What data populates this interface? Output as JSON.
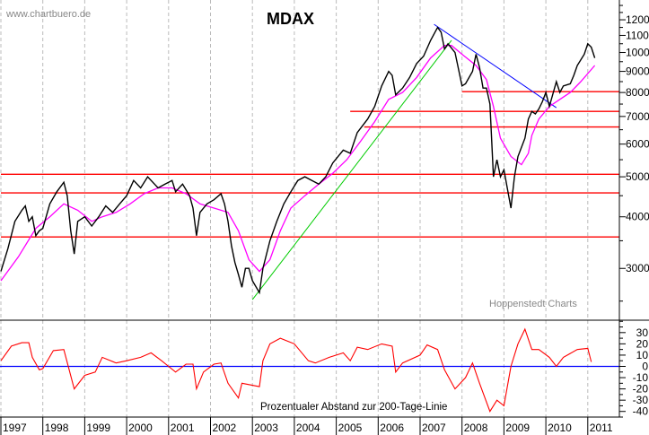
{
  "chart_data": [
    {
      "type": "line",
      "title": "MDAX",
      "watermark": "www.chartbuero.de",
      "source": "Hoppenstedt Charts",
      "y_scale": "log",
      "ylim": [
        2270,
        13400
      ],
      "xlim": [
        "1997-01",
        "2011-10"
      ],
      "y_ticks": [
        3000,
        4000,
        5000,
        6000,
        7000,
        8000,
        9000,
        10000,
        11000,
        12000
      ],
      "y_axis_side": "right",
      "grid": "vertical dashed at year starts",
      "colors": {
        "price": "#000000",
        "ma200": "#ff00ff",
        "support": "#ff0000",
        "downtrend": "#0000ff",
        "uptrend": "#00cc00"
      },
      "series": [
        {
          "key": "price",
          "points": [
            [
              "1997-01",
              2950
            ],
            [
              "1997-03",
              3350
            ],
            [
              "1997-05",
              3900
            ],
            [
              "1997-07",
              4150
            ],
            [
              "1997-08",
              4250
            ],
            [
              "1997-09",
              3900
            ],
            [
              "1997-10",
              4000
            ],
            [
              "1997-11",
              3600
            ],
            [
              "1997-12",
              3700
            ],
            [
              "1998-01",
              3750
            ],
            [
              "1998-03",
              4300
            ],
            [
              "1998-05",
              4600
            ],
            [
              "1998-07",
              4850
            ],
            [
              "1998-08",
              4500
            ],
            [
              "1998-09",
              3700
            ],
            [
              "1998-10",
              3250
            ],
            [
              "1998-11",
              3900
            ],
            [
              "1999-01",
              4000
            ],
            [
              "1999-03",
              3800
            ],
            [
              "1999-05",
              4000
            ],
            [
              "1999-07",
              4250
            ],
            [
              "1999-09",
              4100
            ],
            [
              "1999-11",
              4300
            ],
            [
              "2000-01",
              4500
            ],
            [
              "2000-03",
              4900
            ],
            [
              "2000-05",
              4700
            ],
            [
              "2000-07",
              5000
            ],
            [
              "2000-09",
              4800
            ],
            [
              "2000-10",
              4700
            ],
            [
              "2000-12",
              4800
            ],
            [
              "2001-02",
              4900
            ],
            [
              "2001-03",
              4600
            ],
            [
              "2001-05",
              4800
            ],
            [
              "2001-07",
              4500
            ],
            [
              "2001-08",
              4200
            ],
            [
              "2001-09",
              3600
            ],
            [
              "2001-10",
              4100
            ],
            [
              "2001-12",
              4300
            ],
            [
              "2002-02",
              4400
            ],
            [
              "2002-04",
              4550
            ],
            [
              "2002-05",
              4300
            ],
            [
              "2002-06",
              3900
            ],
            [
              "2002-07",
              3400
            ],
            [
              "2002-08",
              3100
            ],
            [
              "2002-09",
              2900
            ],
            [
              "2002-10",
              2700
            ],
            [
              "2002-11",
              3000
            ],
            [
              "2002-12",
              3000
            ],
            [
              "2003-01",
              2800
            ],
            [
              "2003-03",
              2620
            ],
            [
              "2003-04",
              3000
            ],
            [
              "2003-06",
              3500
            ],
            [
              "2003-08",
              3900
            ],
            [
              "2003-10",
              4300
            ],
            [
              "2003-12",
              4600
            ],
            [
              "2004-02",
              4900
            ],
            [
              "2004-04",
              5000
            ],
            [
              "2004-06",
              4900
            ],
            [
              "2004-08",
              4800
            ],
            [
              "2004-10",
              5000
            ],
            [
              "2004-12",
              5400
            ],
            [
              "2005-03",
              5800
            ],
            [
              "2005-05",
              5700
            ],
            [
              "2005-07",
              6400
            ],
            [
              "2005-10",
              6900
            ],
            [
              "2005-12",
              7400
            ],
            [
              "2006-02",
              8300
            ],
            [
              "2006-04",
              9000
            ],
            [
              "2006-05",
              8800
            ],
            [
              "2006-06",
              7900
            ],
            [
              "2006-08",
              8200
            ],
            [
              "2006-10",
              8700
            ],
            [
              "2006-12",
              9400
            ],
            [
              "2007-02",
              9800
            ],
            [
              "2007-04",
              10700
            ],
            [
              "2007-06",
              11500
            ],
            [
              "2007-07",
              11200
            ],
            [
              "2007-08",
              10200
            ],
            [
              "2007-09",
              10500
            ],
            [
              "2007-11",
              10000
            ],
            [
              "2008-01",
              8300
            ],
            [
              "2008-02",
              8400
            ],
            [
              "2008-04",
              9000
            ],
            [
              "2008-05",
              9900
            ],
            [
              "2008-06",
              9200
            ],
            [
              "2008-07",
              8200
            ],
            [
              "2008-08",
              8200
            ],
            [
              "2008-09",
              7500
            ],
            [
              "2008-10",
              5000
            ],
            [
              "2008-11",
              5500
            ],
            [
              "2008-12",
              5000
            ],
            [
              "2009-01",
              5200
            ],
            [
              "2009-03",
              4200
            ],
            [
              "2009-04",
              5000
            ],
            [
              "2009-05",
              5600
            ],
            [
              "2009-07",
              6200
            ],
            [
              "2009-08",
              6900
            ],
            [
              "2009-09",
              7200
            ],
            [
              "2009-10",
              7100
            ],
            [
              "2009-11",
              7300
            ],
            [
              "2009-12",
              7600
            ],
            [
              "2010-01",
              8000
            ],
            [
              "2010-02",
              7400
            ],
            [
              "2010-04",
              8500
            ],
            [
              "2010-05",
              8000
            ],
            [
              "2010-06",
              8300
            ],
            [
              "2010-08",
              8400
            ],
            [
              "2010-09",
              8800
            ],
            [
              "2010-10",
              9300
            ],
            [
              "2010-12",
              9900
            ],
            [
              "2011-01",
              10500
            ],
            [
              "2011-02",
              10300
            ],
            [
              "2011-03",
              9700
            ]
          ]
        },
        {
          "key": "ma200",
          "points": [
            [
              "1997-01",
              2800
            ],
            [
              "1997-06",
              3200
            ],
            [
              "1997-11",
              3750
            ],
            [
              "1998-03",
              4000
            ],
            [
              "1998-07",
              4300
            ],
            [
              "1998-11",
              4150
            ],
            [
              "1999-03",
              3900
            ],
            [
              "1999-06",
              4000
            ],
            [
              "1999-10",
              4100
            ],
            [
              "2000-02",
              4300
            ],
            [
              "2000-06",
              4550
            ],
            [
              "2000-10",
              4700
            ],
            [
              "2001-02",
              4700
            ],
            [
              "2001-06",
              4550
            ],
            [
              "2001-10",
              4300
            ],
            [
              "2002-02",
              4200
            ],
            [
              "2002-06",
              4100
            ],
            [
              "2002-09",
              3700
            ],
            [
              "2002-12",
              3150
            ],
            [
              "2003-03",
              2950
            ],
            [
              "2003-06",
              3150
            ],
            [
              "2003-09",
              3700
            ],
            [
              "2003-12",
              4200
            ],
            [
              "2004-04",
              4500
            ],
            [
              "2004-08",
              4800
            ],
            [
              "2004-12",
              5100
            ],
            [
              "2005-04",
              5500
            ],
            [
              "2005-08",
              6100
            ],
            [
              "2005-12",
              6800
            ],
            [
              "2006-04",
              7700
            ],
            [
              "2006-08",
              8000
            ],
            [
              "2006-12",
              8700
            ],
            [
              "2007-04",
              9700
            ],
            [
              "2007-08",
              10400
            ],
            [
              "2007-10",
              10400
            ],
            [
              "2008-01",
              9900
            ],
            [
              "2008-05",
              9300
            ],
            [
              "2008-08",
              8600
            ],
            [
              "2008-10",
              7400
            ],
            [
              "2008-12",
              6200
            ],
            [
              "2009-03",
              5600
            ],
            [
              "2009-06",
              5350
            ],
            [
              "2009-08",
              5700
            ],
            [
              "2009-09",
              6300
            ],
            [
              "2009-11",
              6900
            ],
            [
              "2010-02",
              7400
            ],
            [
              "2010-05",
              7700
            ],
            [
              "2010-08",
              8000
            ],
            [
              "2010-11",
              8500
            ],
            [
              "2011-03",
              9300
            ]
          ]
        }
      ],
      "horizontal_lines": [
        {
          "value": 8040,
          "from": "2008-01"
        },
        {
          "value": 7200,
          "from": "2005-05"
        },
        {
          "value": 6600,
          "from": "2005-09"
        },
        {
          "value": 5070,
          "from": "1997-01"
        },
        {
          "value": 4570,
          "from": "1997-01"
        },
        {
          "value": 3575,
          "from": "1997-01"
        }
      ],
      "trend_lines": [
        {
          "key": "downtrend",
          "from": [
            "2007-05",
            11700
          ],
          "to": [
            "2010-04",
            7350
          ]
        },
        {
          "key": "uptrend",
          "from": [
            "2003-01",
            2520
          ],
          "to": [
            "2007-10",
            10700
          ]
        }
      ]
    },
    {
      "type": "line",
      "annotation": "Prozentualer Abstand zur 200-Tage-Linie",
      "ylim": [
        -45,
        41
      ],
      "y_ticks": [
        30,
        20,
        10,
        0,
        -10,
        -20,
        -30,
        -40
      ],
      "zero_line_color": "#0000ff",
      "series_color": "#ff0000",
      "x_tick_labels": [
        "1997",
        "1998",
        "1999",
        "2000",
        "2001",
        "2002",
        "2003",
        "2004",
        "2005",
        "2006",
        "2007",
        "2008",
        "2009",
        "2010",
        "2011"
      ],
      "points": [
        [
          "1997-01",
          5
        ],
        [
          "1997-04",
          18
        ],
        [
          "1997-07",
          21
        ],
        [
          "1997-09",
          21
        ],
        [
          "1997-10",
          8
        ],
        [
          "1997-12",
          -3
        ],
        [
          "1998-01",
          -2
        ],
        [
          "1998-04",
          14
        ],
        [
          "1998-07",
          15
        ],
        [
          "1998-10",
          -20
        ],
        [
          "1999-01",
          -8
        ],
        [
          "1999-04",
          -5
        ],
        [
          "1999-06",
          8
        ],
        [
          "1999-10",
          3
        ],
        [
          "2000-01",
          5
        ],
        [
          "2000-05",
          8
        ],
        [
          "2000-08",
          12
        ],
        [
          "2000-11",
          5
        ],
        [
          "2001-01",
          0
        ],
        [
          "2001-03",
          -5
        ],
        [
          "2001-06",
          2
        ],
        [
          "2001-08",
          2
        ],
        [
          "2001-09",
          -20
        ],
        [
          "2001-11",
          -5
        ],
        [
          "2002-02",
          2
        ],
        [
          "2002-04",
          3
        ],
        [
          "2002-06",
          -15
        ],
        [
          "2002-09",
          -28
        ],
        [
          "2002-10",
          -15
        ],
        [
          "2003-03",
          -18
        ],
        [
          "2003-04",
          5
        ],
        [
          "2003-06",
          20
        ],
        [
          "2003-09",
          25
        ],
        [
          "2004-01",
          20
        ],
        [
          "2004-05",
          5
        ],
        [
          "2004-07",
          3
        ],
        [
          "2004-11",
          8
        ],
        [
          "2005-03",
          12
        ],
        [
          "2005-05",
          5
        ],
        [
          "2005-07",
          17
        ],
        [
          "2005-10",
          15
        ],
        [
          "2006-02",
          20
        ],
        [
          "2006-05",
          18
        ],
        [
          "2006-06",
          -5
        ],
        [
          "2006-08",
          3
        ],
        [
          "2007-01",
          10
        ],
        [
          "2007-03",
          19
        ],
        [
          "2007-06",
          15
        ],
        [
          "2007-08",
          -3
        ],
        [
          "2007-11",
          -20
        ],
        [
          "2008-02",
          -10
        ],
        [
          "2008-04",
          3
        ],
        [
          "2008-06",
          -15
        ],
        [
          "2008-09",
          -40
        ],
        [
          "2008-11",
          -30
        ],
        [
          "2009-01",
          -35
        ],
        [
          "2009-03",
          0
        ],
        [
          "2009-05",
          20
        ],
        [
          "2009-07",
          33
        ],
        [
          "2009-09",
          15
        ],
        [
          "2009-11",
          15
        ],
        [
          "2010-02",
          8
        ],
        [
          "2010-04",
          0
        ],
        [
          "2010-06",
          8
        ],
        [
          "2010-10",
          15
        ],
        [
          "2011-01",
          16
        ],
        [
          "2011-02",
          4
        ]
      ]
    }
  ]
}
